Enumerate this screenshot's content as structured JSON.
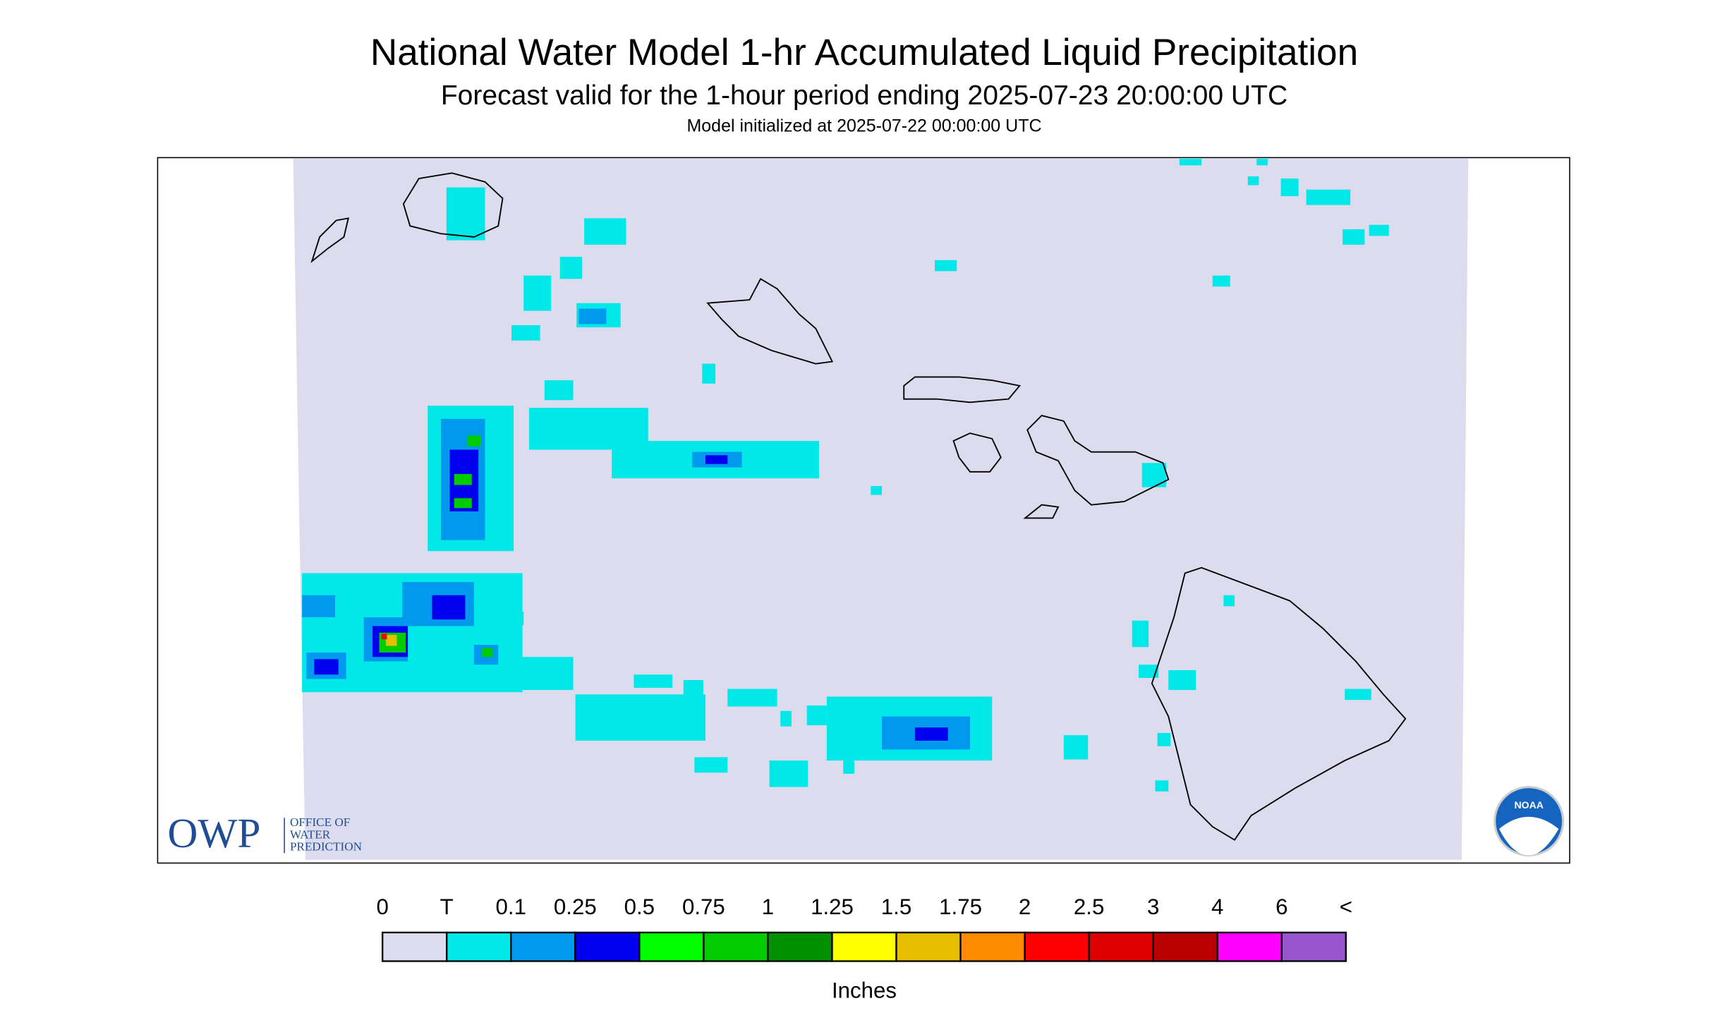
{
  "header": {
    "title": "National Water Model 1-hr Accumulated Liquid Precipitation",
    "subtitle": "Forecast valid for the 1-hour period ending 2025-07-23 20:00:00 UTC",
    "init": "Model initialized at 2025-07-22 00:00:00 UTC"
  },
  "legend": {
    "labels": [
      "0",
      "T",
      "0.1",
      "0.25",
      "0.5",
      "0.75",
      "1",
      "1.25",
      "1.5",
      "1.75",
      "2",
      "2.5",
      "3",
      "4",
      "6",
      "<"
    ],
    "colors": [
      "#dcdcee",
      "#00e8e8",
      "#0099ee",
      "#0000ee",
      "#00ff00",
      "#00cc00",
      "#009000",
      "#ffff00",
      "#e6bf00",
      "#ff8c00",
      "#ff0000",
      "#dd0000",
      "#bb0000",
      "#ff00ff",
      "#9955cc"
    ],
    "units": "Inches"
  },
  "logos": {
    "owp": "OWP",
    "owp_name": [
      "OFFICE OF",
      "WATER",
      "PREDICTION"
    ],
    "noaa": "NOAA"
  }
}
